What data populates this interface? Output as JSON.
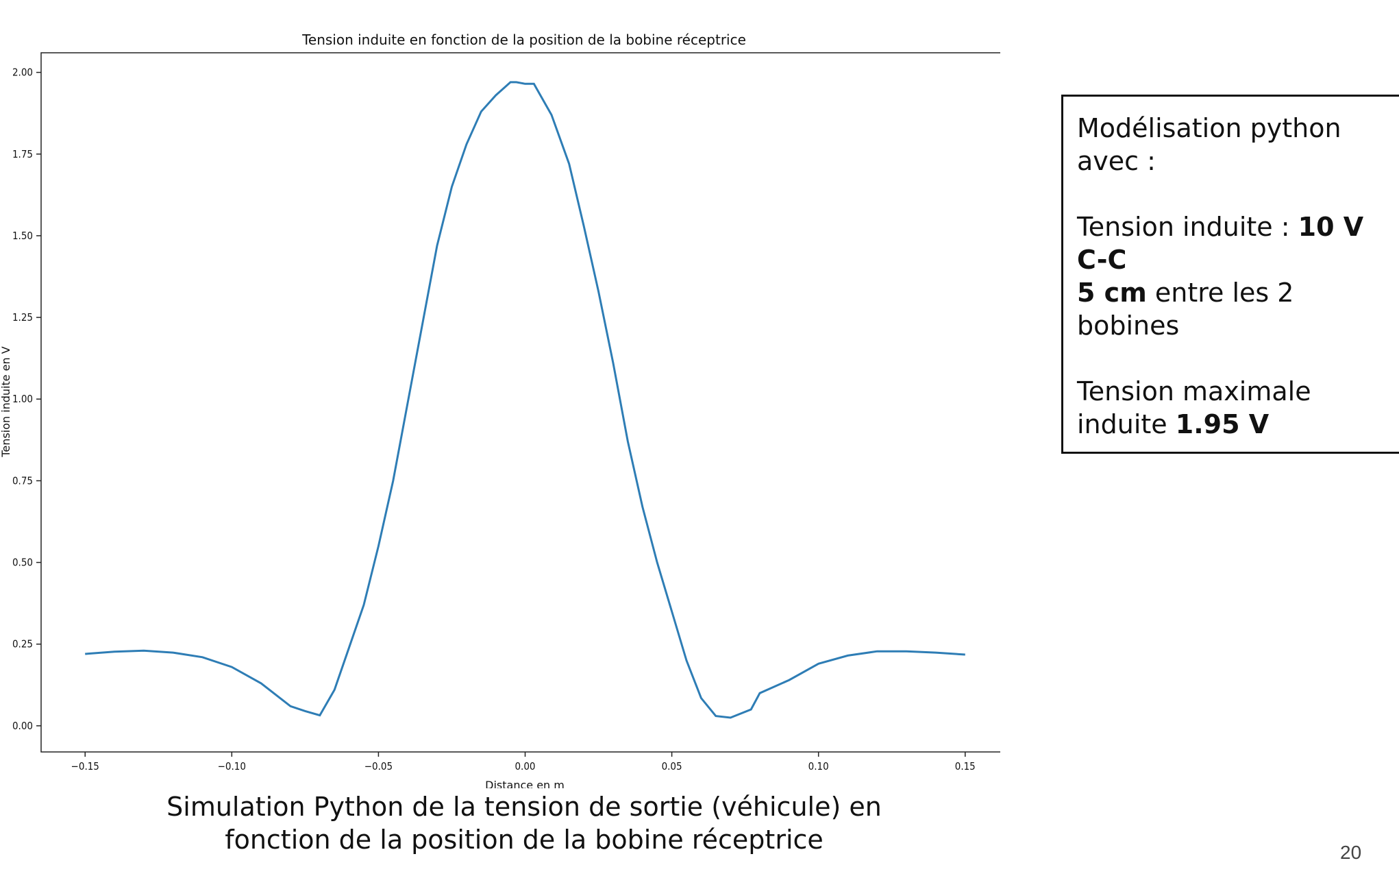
{
  "chart_data": {
    "type": "line",
    "title": "Tension induite en fonction de la position de la bobine réceptrice",
    "xlabel": "Distance en m",
    "ylabel": "Tension induite en  V",
    "xlim": [
      -0.165,
      0.165
    ],
    "ylim": [
      -0.08,
      2.06
    ],
    "xticks": [
      -0.15,
      -0.1,
      -0.05,
      0.0,
      0.05,
      0.1,
      0.15
    ],
    "xtick_labels": [
      "−0.15",
      "−0.10",
      "−0.05",
      "0.00",
      "0.05",
      "0.10",
      "0.15"
    ],
    "yticks": [
      0.0,
      0.25,
      0.5,
      0.75,
      1.0,
      1.25,
      1.5,
      1.75,
      2.0
    ],
    "ytick_labels": [
      "0.00",
      "0.25",
      "0.50",
      "0.75",
      "1.00",
      "1.25",
      "1.50",
      "1.75",
      "2.00"
    ],
    "grid": false,
    "series": [
      {
        "color": "#2e7db5",
        "x": [
          -0.15,
          -0.14,
          -0.13,
          -0.12,
          -0.11,
          -0.1,
          -0.09,
          -0.08,
          -0.075,
          -0.07,
          -0.065,
          -0.06,
          -0.055,
          -0.05,
          -0.045,
          -0.04,
          -0.035,
          -0.03,
          -0.025,
          -0.02,
          -0.015,
          -0.01,
          -0.005,
          -0.003,
          0.0,
          0.003,
          0.009,
          0.015,
          0.02,
          0.025,
          0.03,
          0.035,
          0.04,
          0.045,
          0.05,
          0.055,
          0.06,
          0.065,
          0.07,
          0.077,
          0.08,
          0.09,
          0.1,
          0.11,
          0.12,
          0.13,
          0.14,
          0.15
        ],
        "y": [
          0.22,
          0.227,
          0.23,
          0.224,
          0.21,
          0.18,
          0.13,
          0.06,
          0.045,
          0.032,
          0.11,
          0.24,
          0.37,
          0.55,
          0.75,
          0.99,
          1.23,
          1.47,
          1.65,
          1.78,
          1.88,
          1.93,
          1.97,
          1.97,
          1.965,
          1.965,
          1.87,
          1.72,
          1.53,
          1.33,
          1.11,
          0.87,
          0.67,
          0.5,
          0.35,
          0.2,
          0.085,
          0.03,
          0.025,
          0.05,
          0.1,
          0.14,
          0.19,
          0.215,
          0.228,
          0.228,
          0.224,
          0.218
        ]
      }
    ]
  },
  "caption": {
    "line1": "Simulation Python de la tension de sortie (véhicule) en",
    "line2": "fonction de la position de la bobine réceptrice"
  },
  "info_box": {
    "line1": "Modélisation python",
    "line2": "avec :",
    "tension_label": "Tension induite : ",
    "tension_value": "10 V",
    "tension_unit_line": "C-C",
    "distance_value": "5 cm",
    "distance_text": " entre les 2",
    "distance_text2": "bobines",
    "max_label": "Tension maximale",
    "max_label2": "induite ",
    "max_value": "1.95 V"
  },
  "page_number": "20"
}
